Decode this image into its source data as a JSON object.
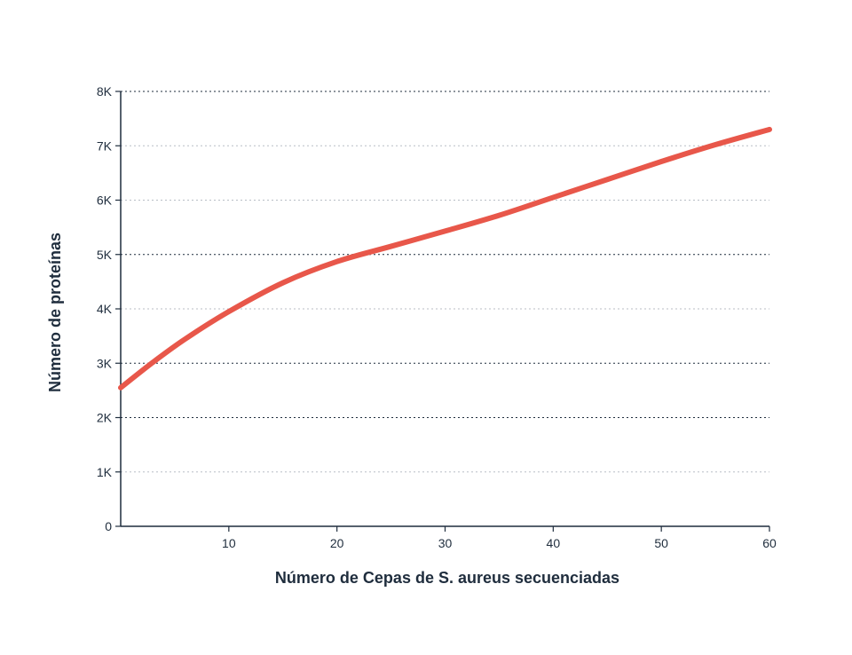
{
  "chart_data": {
    "type": "line",
    "xlabel": "Número de Cepas de S. aureus secuenciadas",
    "ylabel": "Número de proteínas",
    "xlim": [
      0,
      60
    ],
    "ylim": [
      0,
      8000
    ],
    "x_ticks": [
      {
        "value": 10,
        "label": "10"
      },
      {
        "value": 20,
        "label": "20"
      },
      {
        "value": 30,
        "label": "30"
      },
      {
        "value": 40,
        "label": "40"
      },
      {
        "value": 50,
        "label": "50"
      },
      {
        "value": 60,
        "label": "60"
      }
    ],
    "y_ticks": [
      {
        "value": 0,
        "label": "0"
      },
      {
        "value": 1000,
        "label": "1K"
      },
      {
        "value": 2000,
        "label": "2K"
      },
      {
        "value": 3000,
        "label": "3K"
      },
      {
        "value": 4000,
        "label": "4K"
      },
      {
        "value": 5000,
        "label": "5K"
      },
      {
        "value": 6000,
        "label": "6K"
      },
      {
        "value": 7000,
        "label": "7K"
      },
      {
        "value": 8000,
        "label": "8K"
      }
    ],
    "grid": "horizontal-dotted",
    "legend": "none",
    "series": [
      {
        "color": "#e8574a",
        "x": [
          0,
          3,
          6,
          10,
          15,
          20,
          25,
          30,
          35,
          40,
          45,
          50,
          55,
          60
        ],
        "values": [
          2550,
          3020,
          3450,
          3950,
          4480,
          4870,
          5150,
          5430,
          5720,
          6050,
          6380,
          6710,
          7020,
          7300
        ]
      }
    ]
  }
}
